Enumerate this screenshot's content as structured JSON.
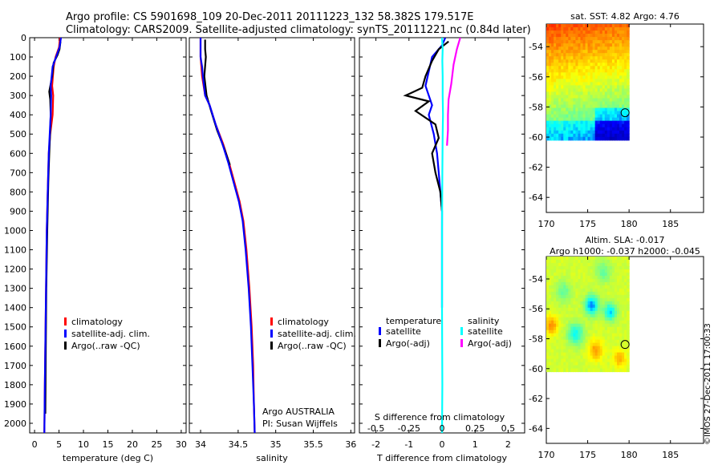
{
  "header": {
    "line1": "Argo profile: CS 5901698_109 20-Dec-2011 20111223_132 58.382S 179.517E",
    "line2": "Climatology: CARS2009. Satellite-adjusted climatology: synTS_20111221.nc (0.84d later)"
  },
  "credit": "©IMOS 27-Dec-2011 17:00:33",
  "chart_data": [
    {
      "type": "line",
      "xlabel": "temperature (deg C)",
      "ylim": [
        2050,
        0
      ],
      "xlim": [
        -1,
        31
      ],
      "xticks": [
        0,
        5,
        10,
        15,
        20,
        25,
        30
      ],
      "yticks": [
        0,
        100,
        200,
        300,
        400,
        500,
        600,
        700,
        800,
        900,
        1000,
        1100,
        1200,
        1300,
        1400,
        1500,
        1600,
        1700,
        1800,
        1900,
        2000
      ],
      "legend": [
        "climatology",
        "satellite-adj. clim.",
        "Argo(..raw -QC)"
      ],
      "legend_colors": [
        "#ff0000",
        "#0000ff",
        "#000000"
      ],
      "series": [
        {
          "name": "climatology",
          "color": "#ff0000",
          "x": [
            5.2,
            5.0,
            4.3,
            3.9,
            3.6,
            3.8,
            3.7,
            3.2,
            2.9,
            2.7,
            2.5,
            2.4,
            2.3,
            2.2,
            2.1,
            2.0
          ],
          "y": [
            0,
            50,
            100,
            150,
            250,
            300,
            400,
            500,
            600,
            800,
            1000,
            1200,
            1400,
            1600,
            1800,
            2050
          ]
        },
        {
          "name": "Argo(..raw -QC)",
          "color": "#000000",
          "x": [
            5.3,
            5.1,
            4.7,
            3.9,
            3.6,
            3.0,
            3.2,
            3.3,
            3.2,
            3.0,
            2.8,
            2.6,
            2.4,
            2.3,
            2.2
          ],
          "y": [
            20,
            60,
            90,
            130,
            200,
            280,
            320,
            400,
            480,
            600,
            750,
            1000,
            1300,
            1600,
            1950
          ]
        },
        {
          "name": "satellite-adj. clim.",
          "color": "#0000ff",
          "x": [
            5.4,
            5.1,
            4.4,
            3.7,
            3.3,
            3.4,
            3.3,
            3.1,
            2.9,
            2.7,
            2.5,
            2.4,
            2.3,
            2.2,
            2.1,
            2.0
          ],
          "y": [
            0,
            50,
            100,
            150,
            250,
            300,
            400,
            500,
            600,
            800,
            1000,
            1200,
            1400,
            1600,
            1800,
            2050
          ]
        }
      ]
    },
    {
      "type": "line",
      "xlabel": "salinity",
      "ylim": [
        2050,
        0
      ],
      "xlim": [
        33.85,
        36.05
      ],
      "xticks": [
        34,
        34.5,
        35,
        35.5,
        36
      ],
      "legend": [
        "climatology",
        "satellite-adj. clim.",
        "Argo(..raw -QC)"
      ],
      "legend_colors": [
        "#ff0000",
        "#0000ff",
        "#000000"
      ],
      "annotations": [
        "Argo AUSTRALIA",
        "PI: Susan Wijffels"
      ],
      "series": [
        {
          "name": "climatology",
          "color": "#ff0000",
          "x": [
            34.0,
            34.0,
            34.01,
            34.02,
            34.06,
            34.12,
            34.2,
            34.3,
            34.38,
            34.45,
            34.52,
            34.57,
            34.61,
            34.65,
            34.68,
            34.7,
            34.71,
            34.72
          ],
          "y": [
            0,
            100,
            150,
            200,
            300,
            350,
            450,
            550,
            650,
            750,
            850,
            950,
            1100,
            1300,
            1500,
            1700,
            1900,
            2050
          ]
        },
        {
          "name": "Argo(..raw -QC)",
          "color": "#000000",
          "x": [
            34.06,
            34.06,
            34.07,
            34.05,
            34.08,
            34.14,
            34.22,
            34.32,
            34.39
          ],
          "y": [
            10,
            60,
            100,
            200,
            300,
            380,
            480,
            580,
            660
          ]
        },
        {
          "name": "satellite-adj. clim.",
          "color": "#0000ff",
          "x": [
            34.0,
            34.0,
            34.02,
            34.03,
            34.06,
            34.12,
            34.2,
            34.29,
            34.37,
            34.44,
            34.51,
            34.56,
            34.6,
            34.64,
            34.67,
            34.69,
            34.71,
            34.72
          ],
          "y": [
            0,
            100,
            150,
            200,
            300,
            350,
            450,
            550,
            650,
            750,
            850,
            950,
            1100,
            1300,
            1500,
            1700,
            1900,
            2050
          ]
        }
      ]
    },
    {
      "type": "line",
      "xlabel": "T difference from climatology",
      "top_xlabel": "S difference from climatology",
      "ylim": [
        2050,
        0
      ],
      "xlim": [
        -2.5,
        2.5
      ],
      "xticks": [
        -2,
        -1,
        0,
        1,
        2
      ],
      "xtick_labels": [
        "-2",
        "-1",
        "0",
        "1",
        "2"
      ],
      "top_xticks": [
        -0.5,
        -0.25,
        0,
        0.25,
        0.5
      ],
      "top_xtick_labels": [
        "-0.5",
        "-0.25",
        "0",
        "0.25",
        "0.5"
      ],
      "legend_groups": [
        "temperature",
        "salinity"
      ],
      "legend": [
        "satellite",
        "Argo(-adj)",
        "satellite",
        "Argo(-adj)"
      ],
      "legend_colors": [
        "#0000ff",
        "#000000",
        "#00ffff",
        "#ff00ff"
      ],
      "series": [
        {
          "name": "satellite",
          "color": "#0000ff",
          "x": [
            0.1,
            0.0,
            -0.3,
            -0.5,
            -0.3,
            -0.4,
            -0.25,
            -0.15,
            -0.1,
            -0.05,
            0.0,
            0.0,
            0.0,
            0.0
          ],
          "y": [
            0,
            40,
            100,
            250,
            350,
            400,
            500,
            600,
            700,
            800,
            900,
            1000,
            1200,
            1400
          ]
        },
        {
          "name": "Argo(-adj)",
          "color": "#000000",
          "x": [
            0.2,
            -0.1,
            -0.3,
            -0.5,
            -0.6,
            -1.1,
            -0.4,
            -0.8,
            -0.2,
            -0.1,
            -0.3,
            -0.2,
            -0.05,
            0.0
          ],
          "y": [
            20,
            60,
            120,
            200,
            260,
            300,
            330,
            380,
            450,
            520,
            600,
            700,
            800,
            900
          ]
        },
        {
          "name": "satellite",
          "color": "#00ffff",
          "x": [
            0.0,
            0.02,
            0.01,
            0.02,
            0.02,
            0.03,
            0.02,
            0.01,
            0.0,
            0.0,
            0.01,
            0.0
          ],
          "y": [
            0,
            60,
            120,
            200,
            300,
            400,
            500,
            700,
            1000,
            1400,
            1800,
            2050
          ]
        },
        {
          "name": "Argo(-adj)",
          "color": "#ff00ff",
          "x": [
            0.55,
            0.45,
            0.35,
            0.28,
            0.2,
            0.18,
            0.18,
            0.15
          ],
          "y": [
            0,
            60,
            140,
            240,
            320,
            400,
            480,
            560
          ]
        }
      ]
    },
    {
      "type": "heatmap",
      "title": "sat. SST: 4.82 Argo: 4.76",
      "xlim": [
        170,
        189
      ],
      "ylim": [
        -65,
        -52.5
      ],
      "xticks": [
        170,
        175,
        180,
        185
      ],
      "yticks": [
        -54,
        -56,
        -58,
        -60,
        -62,
        -64
      ],
      "data_extent": {
        "x": [
          170,
          180
        ],
        "y": [
          -60.2,
          -52.5
        ]
      },
      "marker": {
        "x": 179.517,
        "y": -58.382
      }
    },
    {
      "type": "heatmap",
      "title": "Altim. SLA: -0.017",
      "subtitle": "Argo h1000: -0.037 h2000: -0.045",
      "xlim": [
        170,
        189
      ],
      "ylim": [
        -65,
        -52.5
      ],
      "xticks": [
        170,
        175,
        180,
        185
      ],
      "yticks": [
        -54,
        -56,
        -58,
        -60,
        -62,
        -64
      ],
      "data_extent": {
        "x": [
          170,
          180
        ],
        "y": [
          -60.2,
          -52.5
        ]
      },
      "marker": {
        "x": 179.517,
        "y": -58.382
      }
    }
  ]
}
